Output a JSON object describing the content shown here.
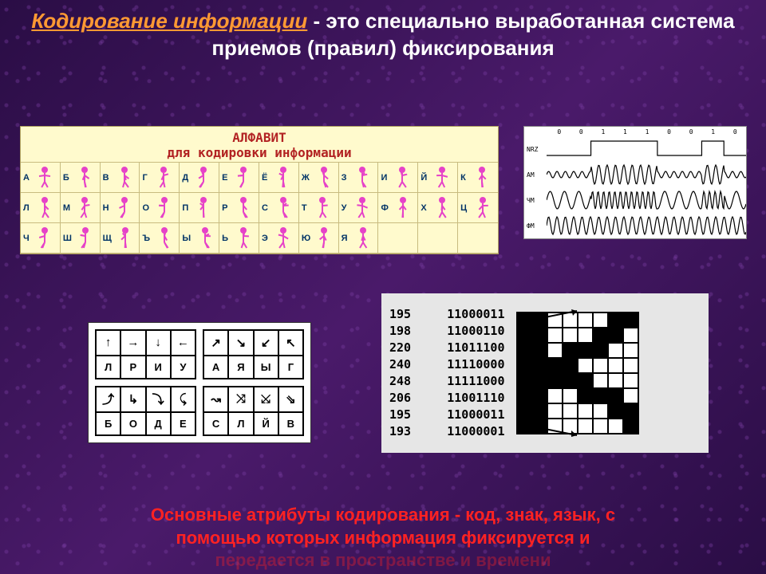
{
  "title": {
    "term": "Кодирование информации",
    "rest": " - это специально выработанная система приемов (правил) фиксирования",
    "term_color": "#ff9933",
    "rest_color": "#ffffff",
    "fontsize": 26
  },
  "alphabet": {
    "title_line1": "АЛФАВИТ",
    "title_line2": "для кодировки информации",
    "title_color": "#b22222",
    "background_color": "#fffacd",
    "border_color": "#c8bc80",
    "letter_color": "#003366",
    "figure_color": "#e642c8",
    "columns": 12,
    "rows": 3,
    "letters": [
      "А",
      "Б",
      "В",
      "Г",
      "Д",
      "Е",
      "Ё",
      "Ж",
      "З",
      "И",
      "Й",
      "К",
      "Л",
      "М",
      "Н",
      "О",
      "П",
      "Р",
      "С",
      "Т",
      "У",
      "Ф",
      "Х",
      "Ц",
      "Ч",
      "Ш",
      "Щ",
      "Ъ",
      "Ы",
      "Ь",
      "Э",
      "Ю",
      "Я",
      "",
      "",
      ""
    ]
  },
  "wave": {
    "background_color": "#ffffff",
    "border_color": "#888888",
    "line_color": "#000000",
    "bits": [
      "0",
      "0",
      "1",
      "1",
      "1",
      "0",
      "0",
      "1",
      "0"
    ],
    "rows": [
      {
        "label": "NRZ",
        "type": "square"
      },
      {
        "label": "АМ",
        "type": "am"
      },
      {
        "label": "ЧМ",
        "type": "fm"
      },
      {
        "label": "ФМ",
        "type": "pm"
      }
    ]
  },
  "arrows": {
    "background_color": "#ffffff",
    "border_color": "#000000",
    "blocks": [
      {
        "arrows": [
          "↑",
          "→",
          "↓",
          "←"
        ],
        "letters": [
          "Л",
          "Р",
          "И",
          "У"
        ]
      },
      {
        "arrows": [
          "↗",
          "↘",
          "↙",
          "↖"
        ],
        "letters": [
          "А",
          "Я",
          "Ы",
          "Г"
        ]
      },
      {
        "arrows": [
          "⤴",
          "↳",
          "⤵",
          "⤹"
        ],
        "letters": [
          "Б",
          "О",
          "Д",
          "Е"
        ]
      },
      {
        "arrows": [
          "↝",
          "⤨",
          "⤩",
          "⇘"
        ],
        "letters": [
          "С",
          "Л",
          "Й",
          "В"
        ]
      }
    ]
  },
  "bitmap": {
    "background_color": "#e6e6e6",
    "grid_border": "#000000",
    "on_color": "#000000",
    "off_color": "#ffffff",
    "font_family": "monospace",
    "font_size": 15,
    "rows": [
      {
        "dec": "195",
        "bin": "11000011",
        "bits": [
          1,
          1,
          0,
          0,
          0,
          0,
          1,
          1
        ]
      },
      {
        "dec": "198",
        "bin": "11000110",
        "bits": [
          1,
          1,
          0,
          0,
          0,
          1,
          1,
          0
        ]
      },
      {
        "dec": "220",
        "bin": "11011100",
        "bits": [
          1,
          1,
          0,
          1,
          1,
          1,
          0,
          0
        ]
      },
      {
        "dec": "240",
        "bin": "11110000",
        "bits": [
          1,
          1,
          1,
          1,
          0,
          0,
          0,
          0
        ]
      },
      {
        "dec": "248",
        "bin": "11111000",
        "bits": [
          1,
          1,
          1,
          1,
          1,
          0,
          0,
          0
        ]
      },
      {
        "dec": "206",
        "bin": "11001110",
        "bits": [
          1,
          1,
          0,
          0,
          1,
          1,
          1,
          0
        ]
      },
      {
        "dec": "195",
        "bin": "11000011",
        "bits": [
          1,
          1,
          0,
          0,
          0,
          0,
          1,
          1
        ]
      },
      {
        "dec": "193",
        "bin": "11000001",
        "bits": [
          1,
          1,
          0,
          0,
          0,
          0,
          0,
          1
        ]
      }
    ]
  },
  "footer": {
    "line1": "Основные атрибуты кодирования - код, знак, язык, с",
    "line2": "помощью которых информация фиксируется и",
    "line3": "передается в пространстве и времени",
    "color": "#ff2222",
    "fontsize": 22
  }
}
